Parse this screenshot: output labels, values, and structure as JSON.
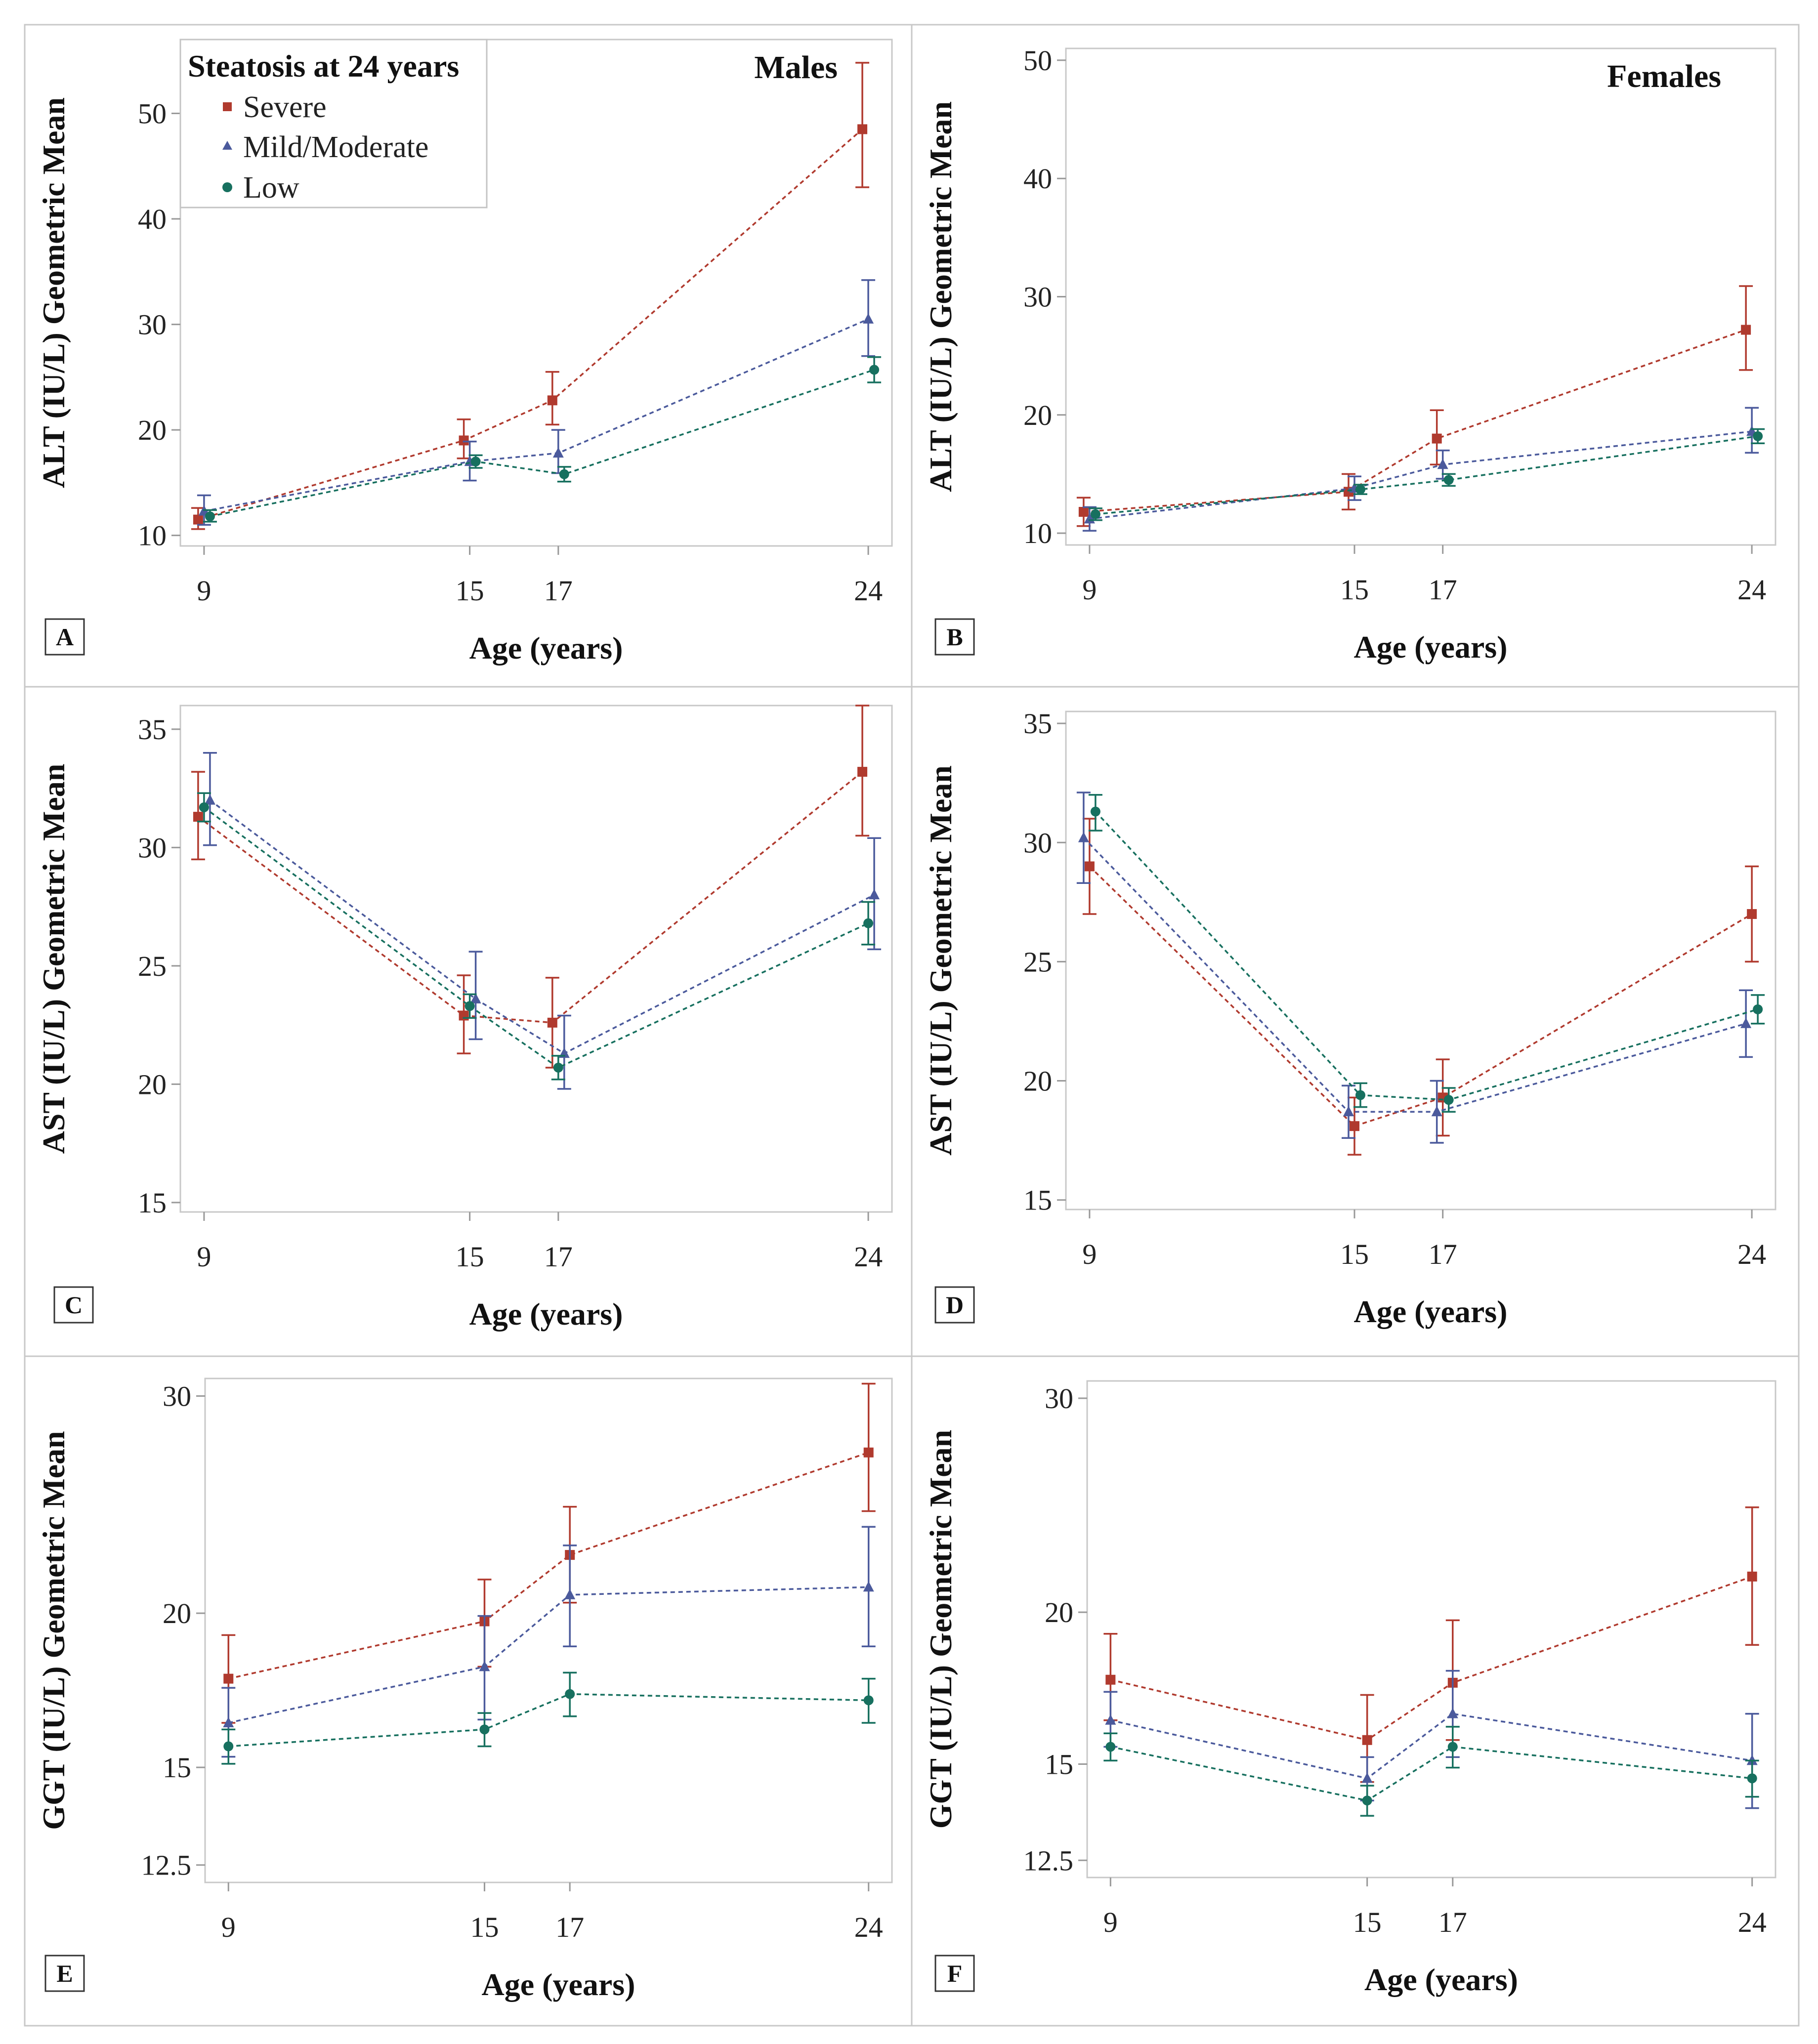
{
  "chart_data": [
    {
      "panel": "A",
      "type": "line",
      "title": "Males",
      "ylabel": "ALT (IU/L) Geometric Mean",
      "xlabel": "Age (years)",
      "x": [
        9,
        15,
        17,
        24
      ],
      "xticks": [
        "9",
        "15",
        "17",
        "24"
      ],
      "yticks": [
        "10",
        "20",
        "30",
        "40",
        "50"
      ],
      "ylim": [
        9,
        57
      ],
      "series": [
        {
          "name": "Severe",
          "values": [
            11.5,
            19.0,
            22.8,
            48.5
          ],
          "lower": [
            10.6,
            17.3,
            20.5,
            43.0
          ],
          "upper": [
            12.6,
            21.0,
            25.5,
            54.8
          ]
        },
        {
          "name": "Mild/Moderate",
          "values": [
            12.3,
            17.0,
            17.8,
            30.5
          ],
          "lower": [
            11.0,
            15.2,
            15.9,
            27.0
          ],
          "upper": [
            13.8,
            18.9,
            20.0,
            34.2
          ]
        },
        {
          "name": "Low",
          "values": [
            11.8,
            17.0,
            15.8,
            25.7
          ],
          "lower": [
            11.3,
            16.4,
            15.1,
            24.5
          ],
          "upper": [
            12.4,
            17.6,
            16.5,
            26.9
          ]
        }
      ]
    },
    {
      "panel": "B",
      "type": "line",
      "title": "Females",
      "ylabel": "ALT (IU/L) Geometric Mean",
      "xlabel": "Age (years)",
      "x": [
        9,
        15,
        17,
        24
      ],
      "xticks": [
        "9",
        "15",
        "17",
        "24"
      ],
      "yticks": [
        "10",
        "20",
        "30",
        "40",
        "50"
      ],
      "ylim": [
        9,
        51
      ],
      "series": [
        {
          "name": "Severe",
          "values": [
            11.8,
            13.5,
            18.0,
            27.2
          ],
          "lower": [
            10.6,
            12.0,
            15.8,
            23.8
          ],
          "upper": [
            13.0,
            15.0,
            20.4,
            30.9
          ]
        },
        {
          "name": "Mild/Moderate",
          "values": [
            11.2,
            13.8,
            15.8,
            18.6
          ],
          "lower": [
            10.2,
            12.8,
            14.6,
            16.8
          ],
          "upper": [
            12.2,
            14.8,
            17.0,
            20.6
          ]
        },
        {
          "name": "Low",
          "values": [
            11.6,
            13.7,
            14.5,
            18.2
          ],
          "lower": [
            11.1,
            13.3,
            14.0,
            17.6
          ],
          "upper": [
            12.1,
            14.1,
            15.0,
            18.8
          ]
        }
      ]
    },
    {
      "panel": "C",
      "type": "line",
      "title": "",
      "ylabel": "AST (IU/L) Geometric Mean",
      "xlabel": "Age (years)",
      "x": [
        9,
        15,
        17,
        24
      ],
      "xticks": [
        "9",
        "15",
        "17",
        "24"
      ],
      "yticks": [
        "15",
        "20",
        "25",
        "30",
        "35"
      ],
      "ylim": [
        14.6,
        36.0
      ],
      "series": [
        {
          "name": "Severe",
          "values": [
            31.3,
            22.9,
            22.6,
            33.2
          ],
          "lower": [
            29.5,
            21.3,
            20.7,
            30.5
          ],
          "upper": [
            33.2,
            24.6,
            24.5,
            36.0
          ]
        },
        {
          "name": "Mild/Moderate",
          "values": [
            32.0,
            23.6,
            21.3,
            28.0
          ],
          "lower": [
            30.1,
            21.9,
            19.8,
            25.7
          ],
          "upper": [
            34.0,
            25.6,
            22.9,
            30.4
          ]
        },
        {
          "name": "Low",
          "values": [
            31.7,
            23.3,
            20.7,
            26.8
          ],
          "lower": [
            31.1,
            22.8,
            20.2,
            25.9
          ],
          "upper": [
            32.3,
            23.8,
            21.2,
            27.7
          ]
        }
      ]
    },
    {
      "panel": "D",
      "type": "line",
      "title": "",
      "ylabel": "AST (IU/L) Geometric Mean",
      "xlabel": "Age (years)",
      "x": [
        9,
        15,
        17,
        24
      ],
      "xticks": [
        "9",
        "15",
        "17",
        "24"
      ],
      "yticks": [
        "15",
        "20",
        "25",
        "30",
        "35"
      ],
      "ylim": [
        14.6,
        35.5
      ],
      "series": [
        {
          "name": "Severe",
          "values": [
            29.0,
            18.1,
            19.3,
            27.0
          ],
          "lower": [
            27.0,
            16.9,
            17.7,
            25.0
          ],
          "upper": [
            31.0,
            19.3,
            20.9,
            29.0
          ]
        },
        {
          "name": "Mild/Moderate",
          "values": [
            30.2,
            18.7,
            18.7,
            22.4
          ],
          "lower": [
            28.3,
            17.6,
            17.4,
            21.0
          ],
          "upper": [
            32.1,
            19.8,
            20.0,
            23.8
          ]
        },
        {
          "name": "Low",
          "values": [
            31.3,
            19.4,
            19.2,
            23.0
          ],
          "lower": [
            30.5,
            18.9,
            18.7,
            22.4
          ],
          "upper": [
            32.0,
            19.9,
            19.7,
            23.6
          ]
        }
      ]
    },
    {
      "panel": "E",
      "type": "line",
      "title": "",
      "ylabel": "GGT (IU/L) Geometric Mean",
      "xlabel": "Age (years)",
      "x": [
        9,
        15,
        17,
        24
      ],
      "xticks": [
        "9",
        "15",
        "17",
        "24"
      ],
      "yticks": [
        "12.5",
        "15",
        "20",
        "30"
      ],
      "ylim": [
        12.1,
        31.0
      ],
      "series": [
        {
          "name": "Severe",
          "values": [
            17.7,
            19.7,
            22.3,
            27.0
          ],
          "lower": [
            16.3,
            18.1,
            20.4,
            24.2
          ],
          "upper": [
            19.2,
            21.3,
            24.4,
            30.7
          ]
        },
        {
          "name": "Mild/Moderate",
          "values": [
            16.3,
            18.1,
            20.7,
            21.0
          ],
          "lower": [
            15.3,
            16.4,
            18.8,
            18.8
          ],
          "upper": [
            17.4,
            19.9,
            22.7,
            23.5
          ]
        },
        {
          "name": "Low",
          "values": [
            15.6,
            16.1,
            17.2,
            17.0
          ],
          "lower": [
            15.1,
            15.6,
            16.5,
            16.3
          ],
          "upper": [
            16.1,
            16.6,
            17.9,
            17.7
          ]
        }
      ]
    },
    {
      "panel": "F",
      "type": "line",
      "title": "",
      "ylabel": "GGT (IU/L) Geometric Mean",
      "xlabel": "Age (years)",
      "x": [
        9,
        15,
        17,
        24
      ],
      "xticks": [
        "9",
        "15",
        "17",
        "24"
      ],
      "yticks": [
        "12.5",
        "15",
        "20",
        "30"
      ],
      "ylim": [
        12.1,
        31.0
      ],
      "series": [
        {
          "name": "Severe",
          "values": [
            17.6,
            15.7,
            17.5,
            21.4
          ],
          "lower": [
            16.3,
            14.5,
            15.7,
            18.8
          ],
          "upper": [
            19.2,
            17.1,
            19.7,
            24.4
          ]
        },
        {
          "name": "Mild/Moderate",
          "values": [
            16.3,
            14.6,
            16.5,
            15.1
          ],
          "lower": [
            15.5,
            14.0,
            15.2,
            13.8
          ],
          "upper": [
            17.2,
            15.2,
            17.9,
            16.5
          ]
        },
        {
          "name": "Low",
          "values": [
            15.5,
            14.0,
            15.5,
            14.6
          ],
          "lower": [
            15.1,
            13.6,
            14.9,
            14.1
          ],
          "upper": [
            15.9,
            14.4,
            16.1,
            15.1
          ]
        }
      ]
    }
  ],
  "legend": {
    "title": "Steatosis at 24 years",
    "entries": [
      "Severe",
      "Mild/Moderate",
      "Low"
    ]
  },
  "colors": {
    "Severe": "#b03a2e",
    "Mild/Moderate": "#4b5a9c",
    "Low": "#17705f",
    "frame": "#c8c8c8",
    "axis": "#999999"
  }
}
